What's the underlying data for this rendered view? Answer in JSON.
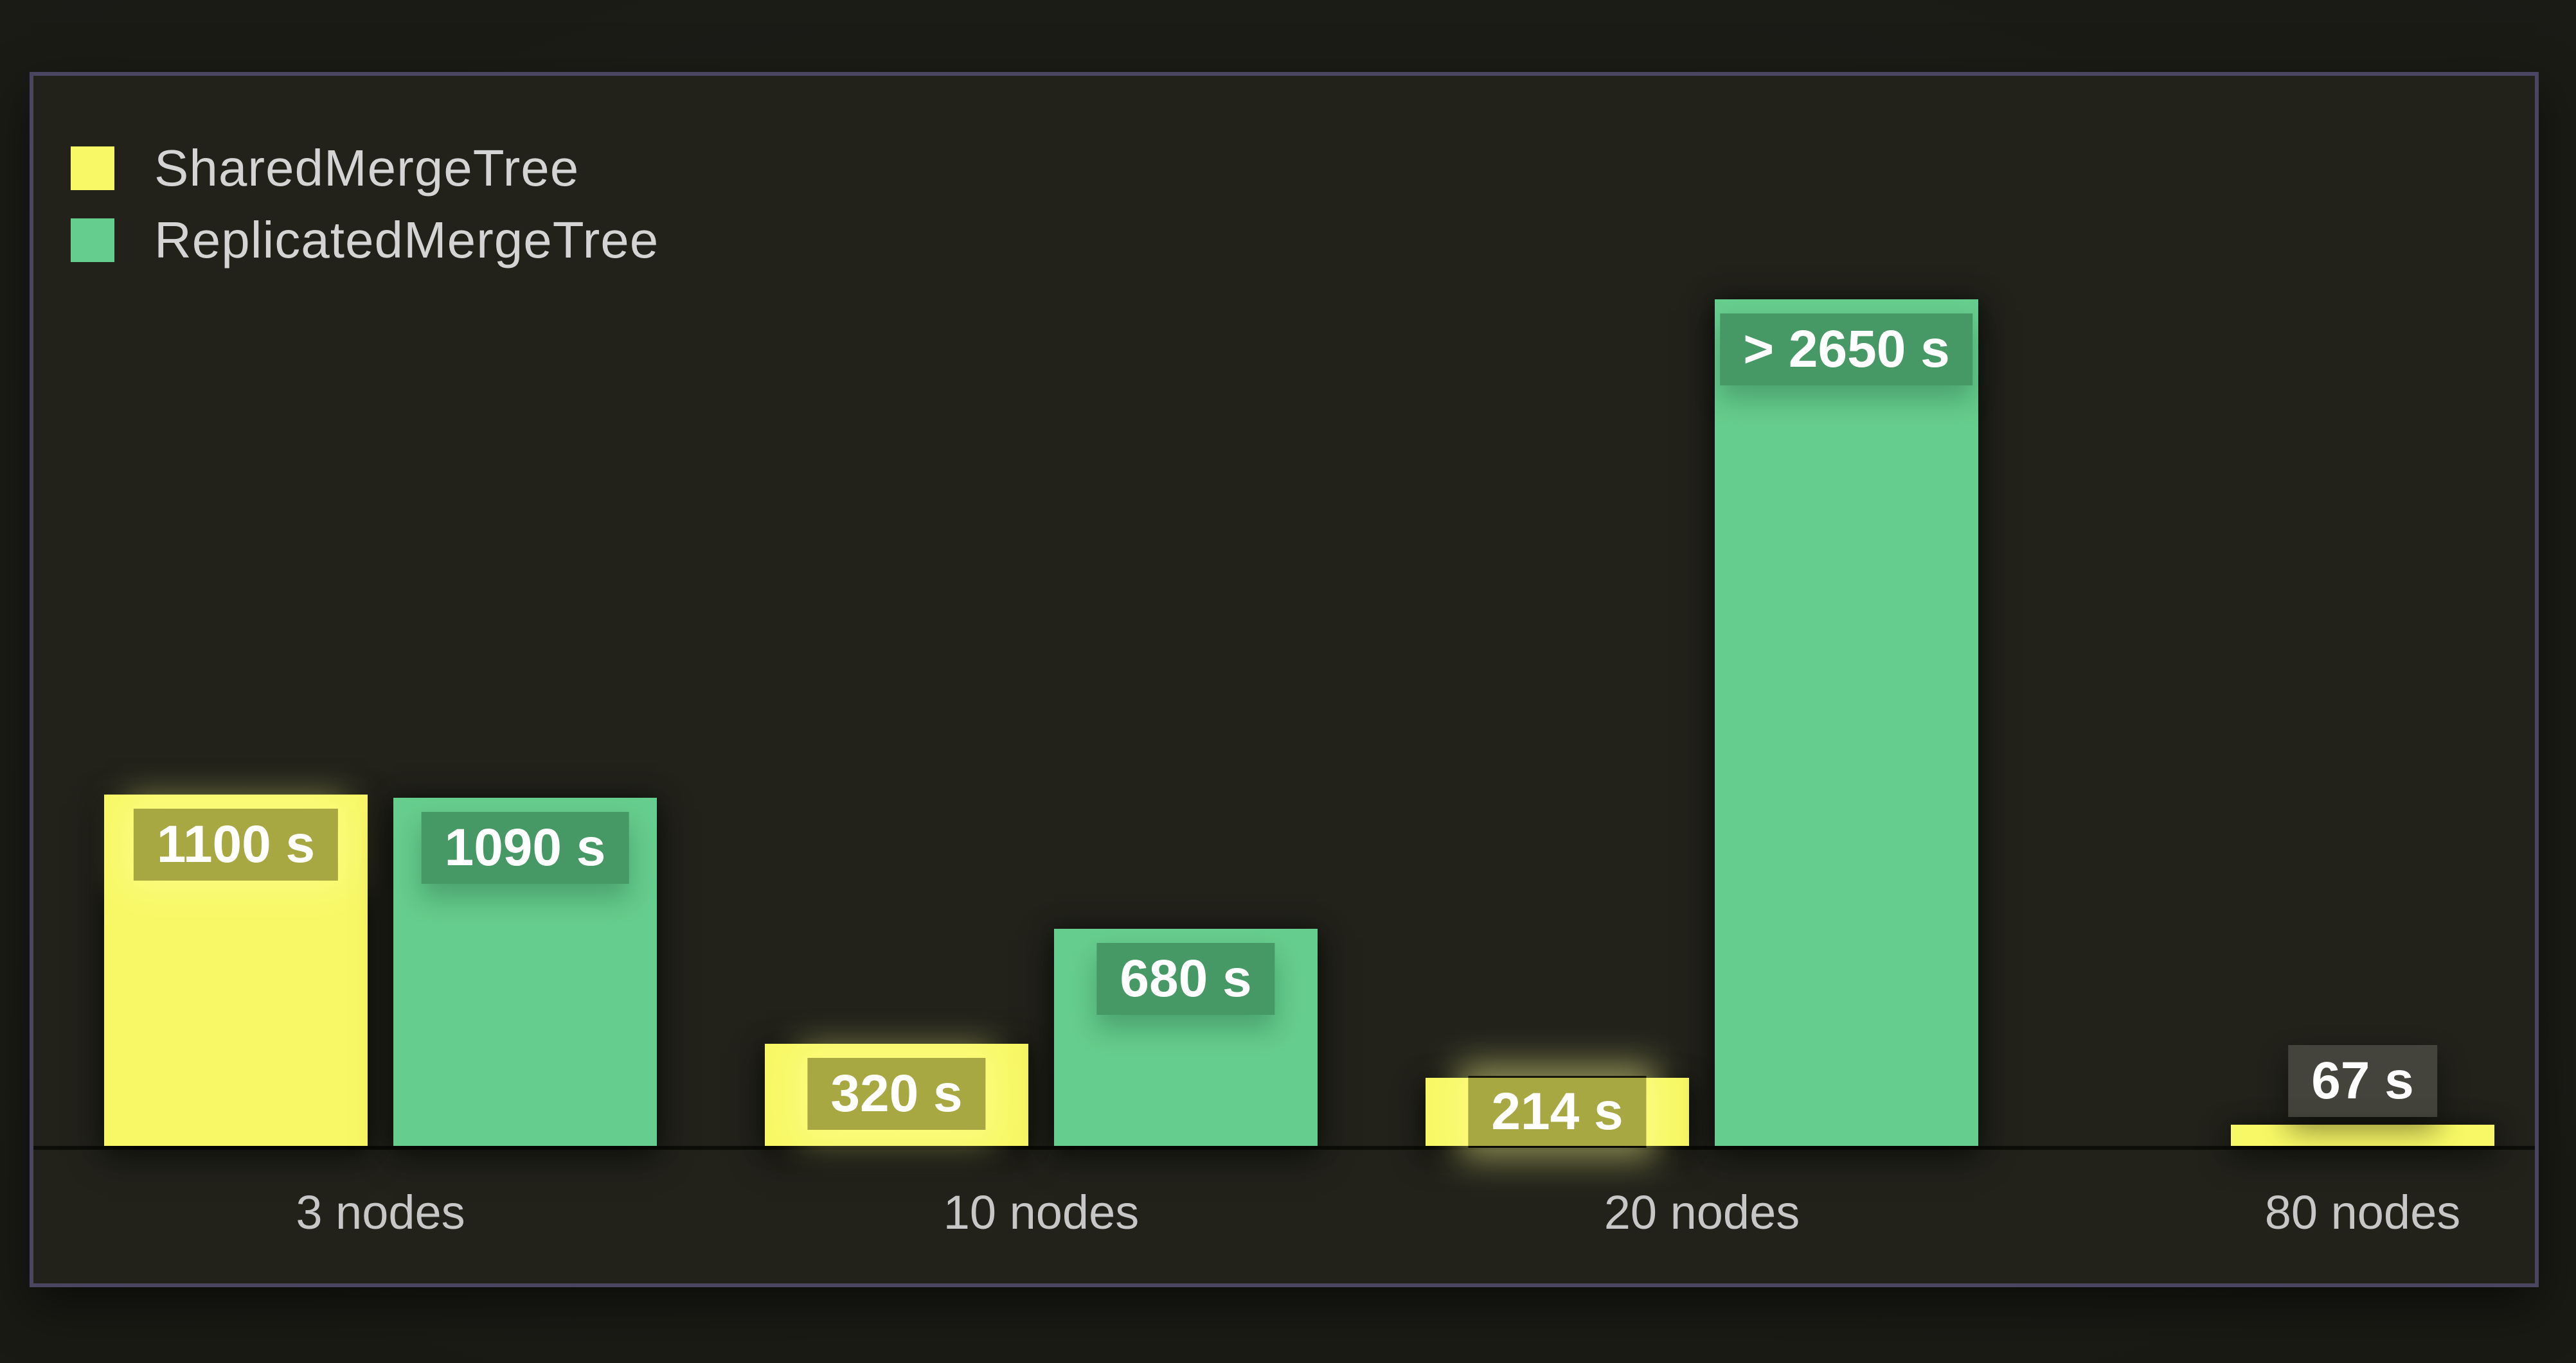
{
  "chart_data": {
    "type": "bar",
    "title": "",
    "xlabel": "",
    "ylabel": "",
    "value_unit": "s",
    "categories": [
      "3 nodes",
      "10 nodes",
      "20 nodes",
      "80 nodes"
    ],
    "series": [
      {
        "name": "SharedMergeTree",
        "color": "#f8f866",
        "values": [
          1100,
          320,
          214,
          67
        ],
        "value_labels": [
          "1100 s",
          "320 s",
          "214 s",
          "67 s"
        ]
      },
      {
        "name": "ReplicatedMergeTree",
        "color": "#65cd8d",
        "values": [
          1090,
          680,
          2650,
          null
        ],
        "value_labels": [
          "1090 s",
          "680 s",
          "> 2650 s",
          null
        ]
      }
    ],
    "ylim": [
      0,
      3350
    ],
    "grid": false,
    "legend_position": "top-left",
    "value_label_style": "badge-on-bar"
  },
  "colors": {
    "page_background": "#1a1a15",
    "panel_background": "#22221b",
    "panel_border": "#4a4661",
    "legend_text": "#d4d4d4",
    "axis_label_text": "#c7c7c7",
    "badge_text": "#ffffff",
    "axis_line": "#0f0f0b"
  }
}
